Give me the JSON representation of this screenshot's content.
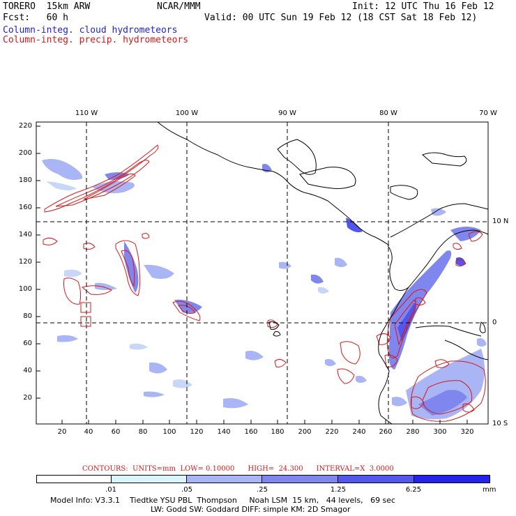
{
  "header": {
    "model": "TORERO  15km ARW",
    "org": "NCAR/MMM",
    "init": "Init: 12 UTC Thu 16 Feb 12",
    "fcst": "Fcst:   60 h",
    "valid": "Valid: 00 UTC Sun 19 Feb 12 (18 CST Sat 18 Feb 12)",
    "legend_cloud": "Column-integ. cloud hydrometeors",
    "legend_precip": "Column-integ. precip. hydrometeors"
  },
  "map": {
    "lon_labels": [
      "110 W",
      "100 W",
      "90 W",
      "80 W",
      "70 W"
    ],
    "lat_labels": [
      "10 N",
      "0",
      "10 S"
    ],
    "y_ticks": [
      "220",
      "200",
      "180",
      "160",
      "140",
      "120",
      "100",
      "80",
      "60",
      "40",
      "20"
    ],
    "x_ticks": [
      "20",
      "40",
      "60",
      "80",
      "100",
      "120",
      "140",
      "160",
      "180",
      "200",
      "220",
      "240",
      "260",
      "280",
      "300",
      "320"
    ]
  },
  "contours": {
    "text": "CONTOURS:  UNITS=mm  LOW= 0.10000      HIGH=  24.300      INTERVAL=X  3.0000"
  },
  "colorbar": {
    "labels": [
      ".01",
      ".05",
      ".25",
      "1.25",
      "6.25",
      "mm"
    ],
    "colors": [
      "#ffffff",
      "#d8f6fb",
      "#a9b5f4",
      "#7f87ef",
      "#5256ec",
      "#2424e8"
    ]
  },
  "footer": {
    "line1": "Model Info: V3.3.1    Tiedtke YSU PBL  Thompson     Noah LSM  15 km,   44 levels,   69 sec",
    "line2": "LW: Godd SW: Goddard DIFF: simple KM: 2D Smagor"
  }
}
